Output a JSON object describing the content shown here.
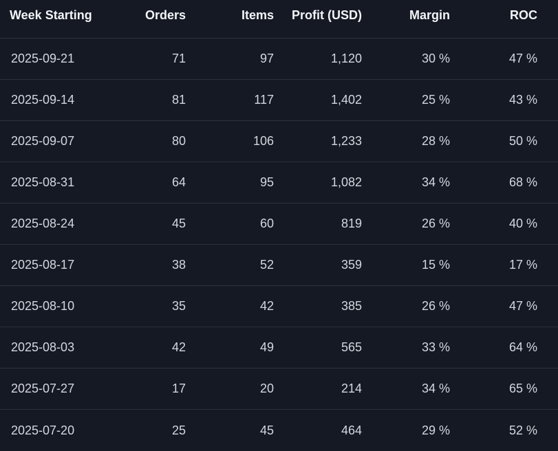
{
  "table": {
    "headers": {
      "week": "Week Starting",
      "orders": "Orders",
      "items": "Items",
      "profit": "Profit (USD)",
      "margin": "Margin",
      "roc": "ROC"
    },
    "rows": [
      {
        "week": "2025-09-21",
        "orders": "71",
        "items": "97",
        "profit": "1,120",
        "margin": "30 %",
        "roc": "47 %"
      },
      {
        "week": "2025-09-14",
        "orders": "81",
        "items": "117",
        "profit": "1,402",
        "margin": "25 %",
        "roc": "43 %"
      },
      {
        "week": "2025-09-07",
        "orders": "80",
        "items": "106",
        "profit": "1,233",
        "margin": "28 %",
        "roc": "50 %"
      },
      {
        "week": "2025-08-31",
        "orders": "64",
        "items": "95",
        "profit": "1,082",
        "margin": "34 %",
        "roc": "68 %"
      },
      {
        "week": "2025-08-24",
        "orders": "45",
        "items": "60",
        "profit": "819",
        "margin": "26 %",
        "roc": "40 %"
      },
      {
        "week": "2025-08-17",
        "orders": "38",
        "items": "52",
        "profit": "359",
        "margin": "15 %",
        "roc": "17 %"
      },
      {
        "week": "2025-08-10",
        "orders": "35",
        "items": "42",
        "profit": "385",
        "margin": "26 %",
        "roc": "47 %"
      },
      {
        "week": "2025-08-03",
        "orders": "42",
        "items": "49",
        "profit": "565",
        "margin": "33 %",
        "roc": "64 %"
      },
      {
        "week": "2025-07-27",
        "orders": "17",
        "items": "20",
        "profit": "214",
        "margin": "34 %",
        "roc": "65 %"
      },
      {
        "week": "2025-07-20",
        "orders": "25",
        "items": "45",
        "profit": "464",
        "margin": "29 %",
        "roc": "52 %"
      }
    ]
  }
}
